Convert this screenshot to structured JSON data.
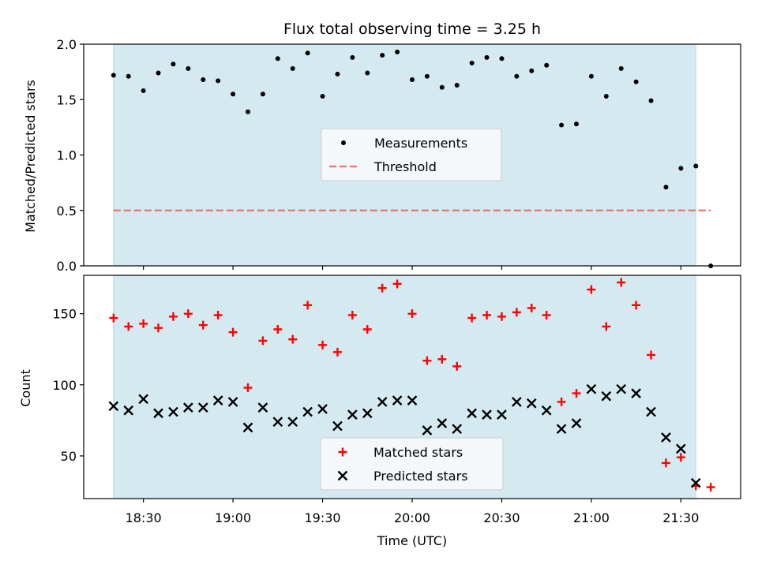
{
  "chart_data": {
    "type": "scatter",
    "title": "Flux total observing time = 3.25 h",
    "xlabel": "Time (UTC)",
    "x_tick_labels": [
      "18:30",
      "19:00",
      "19:30",
      "20:00",
      "20:30",
      "21:00",
      "21:30"
    ],
    "x_tick_values": [
      "18:30",
      "19:00",
      "19:30",
      "20:00",
      "20:30",
      "21:00",
      "21:30"
    ],
    "xlim": [
      "18:10",
      "21:50"
    ],
    "observing_window": [
      "18:20",
      "21:35"
    ],
    "shading_color": "#d4eaf0",
    "panels": [
      {
        "ylabel": "Matched/Predicted stars",
        "ylim": [
          0,
          2.0
        ],
        "y_tick_labels": [
          "0.0",
          "0.5",
          "1.0",
          "1.5",
          "2.0"
        ],
        "y_tick_values": [
          0,
          0.5,
          1.0,
          1.5,
          2.0
        ],
        "legend": [
          "Measurements",
          "Threshold"
        ],
        "series": [
          {
            "name": "Measurements",
            "marker": "dot",
            "color": "#000000",
            "x": [
              "18:20",
              "18:25",
              "18:30",
              "18:35",
              "18:40",
              "18:45",
              "18:50",
              "18:55",
              "19:00",
              "19:05",
              "19:10",
              "19:15",
              "19:20",
              "19:25",
              "19:30",
              "19:35",
              "19:40",
              "19:45",
              "19:50",
              "19:55",
              "20:00",
              "20:05",
              "20:10",
              "20:15",
              "20:20",
              "20:25",
              "20:30",
              "20:35",
              "20:40",
              "20:45",
              "20:50",
              "20:55",
              "21:00",
              "21:05",
              "21:10",
              "21:15",
              "21:20",
              "21:25",
              "21:30",
              "21:35",
              "21:40"
            ],
            "y": [
              1.72,
              1.71,
              1.58,
              1.74,
              1.82,
              1.78,
              1.68,
              1.67,
              1.55,
              1.39,
              1.55,
              1.87,
              1.78,
              1.92,
              1.53,
              1.73,
              1.88,
              1.74,
              1.9,
              1.93,
              1.68,
              1.71,
              1.61,
              1.63,
              1.83,
              1.88,
              1.87,
              1.71,
              1.76,
              1.81,
              1.27,
              1.28,
              1.71,
              1.53,
              1.78,
              1.66,
              1.49,
              0.71,
              0.88,
              0.9,
              0.0
            ]
          },
          {
            "name": "Threshold",
            "style": "dashed",
            "color": "#f07070",
            "x": [
              "18:20",
              "21:40"
            ],
            "y": [
              0.5,
              0.5
            ]
          }
        ]
      },
      {
        "ylabel": "Count",
        "ylim": [
          20,
          177
        ],
        "y_tick_labels": [
          "50",
          "100",
          "150"
        ],
        "y_tick_values": [
          50,
          100,
          150
        ],
        "legend": [
          "Matched stars",
          "Predicted stars"
        ],
        "series": [
          {
            "name": "Matched stars",
            "marker": "plus",
            "color": "#ff0000",
            "x": [
              "18:20",
              "18:25",
              "18:30",
              "18:35",
              "18:40",
              "18:45",
              "18:50",
              "18:55",
              "19:00",
              "19:05",
              "19:10",
              "19:15",
              "19:20",
              "19:25",
              "19:30",
              "19:35",
              "19:40",
              "19:45",
              "19:50",
              "19:55",
              "20:00",
              "20:05",
              "20:10",
              "20:15",
              "20:20",
              "20:25",
              "20:30",
              "20:35",
              "20:40",
              "20:45",
              "20:50",
              "20:55",
              "21:00",
              "21:05",
              "21:10",
              "21:15",
              "21:20",
              "21:25",
              "21:30",
              "21:35",
              "21:40"
            ],
            "y": [
              147,
              141,
              143,
              140,
              148,
              150,
              142,
              149,
              137,
              98,
              131,
              139,
              132,
              156,
              128,
              123,
              149,
              139,
              168,
              171,
              150,
              117,
              118,
              113,
              147,
              149,
              148,
              151,
              154,
              149,
              88,
              94,
              167,
              141,
              172,
              156,
              121,
              45,
              49,
              29,
              28
            ]
          },
          {
            "name": "Predicted stars",
            "marker": "x",
            "color": "#000000",
            "x": [
              "18:20",
              "18:25",
              "18:30",
              "18:35",
              "18:40",
              "18:45",
              "18:50",
              "18:55",
              "19:00",
              "19:05",
              "19:10",
              "19:15",
              "19:20",
              "19:25",
              "19:30",
              "19:35",
              "19:40",
              "19:45",
              "19:50",
              "19:55",
              "20:00",
              "20:05",
              "20:10",
              "20:15",
              "20:20",
              "20:25",
              "20:30",
              "20:35",
              "20:40",
              "20:45",
              "20:50",
              "20:55",
              "21:00",
              "21:05",
              "21:10",
              "21:15",
              "21:20",
              "21:25",
              "21:30",
              "21:35"
            ],
            "y": [
              85,
              82,
              90,
              80,
              81,
              84,
              84,
              89,
              88,
              70,
              84,
              74,
              74,
              81,
              83,
              71,
              79,
              80,
              88,
              89,
              89,
              68,
              73,
              69,
              80,
              79,
              79,
              88,
              87,
              82,
              69,
              73,
              97,
              92,
              97,
              94,
              81,
              63,
              55,
              31
            ]
          }
        ]
      }
    ]
  }
}
